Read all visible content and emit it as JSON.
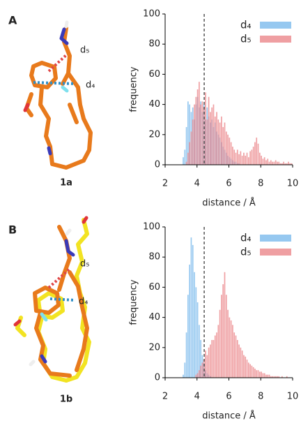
{
  "figure": {
    "panels": [
      {
        "letter": "A",
        "compound": "1a",
        "labels": [
          "d₅",
          "d₄"
        ]
      },
      {
        "letter": "B",
        "compound": "1b",
        "labels": [
          "d₅",
          "d₄"
        ]
      }
    ]
  },
  "chart_data": [
    {
      "type": "histogram",
      "xlabel": "distance / Å",
      "ylabel": "frequency",
      "bins": [
        3,
        3.1,
        3.2,
        3.3,
        3.4,
        3.5,
        3.6,
        3.7,
        3.8,
        3.9,
        4,
        4.1,
        4.2,
        4.3,
        4.4,
        4.5,
        4.6,
        4.7,
        4.8,
        4.9,
        5,
        5.1,
        5.2,
        5.3,
        5.4,
        5.5,
        5.6,
        5.7,
        5.8,
        5.9,
        6,
        6.1,
        6.2,
        6.3,
        6.4,
        6.5,
        6.6,
        6.7,
        6.8,
        6.9,
        7,
        7.1,
        7.2,
        7.3,
        7.4,
        7.5,
        7.6,
        7.7,
        7.8,
        7.9,
        8,
        8.1,
        8.2,
        8.3,
        8.4,
        8.5,
        8.6,
        8.7,
        8.8,
        8.9,
        9,
        9.1,
        9.2,
        9.3,
        9.4,
        9.5,
        9.6,
        9.7,
        9.8,
        9.9,
        10
      ],
      "series": [
        {
          "name": "d₄",
          "color": "#6ab0ea",
          "values": [
            0,
            5,
            10,
            25,
            42,
            40,
            35,
            38,
            30,
            40,
            45,
            38,
            42,
            35,
            40,
            30,
            38,
            32,
            28,
            30,
            25,
            28,
            22,
            20,
            18,
            15,
            12,
            10,
            8,
            6,
            5,
            4,
            3,
            2,
            2,
            1,
            1,
            0,
            0,
            0,
            0,
            0,
            0,
            0,
            0,
            0,
            0,
            0,
            0,
            0,
            0,
            0,
            0,
            0,
            0,
            0,
            0,
            0,
            0,
            0,
            0,
            0,
            0,
            0,
            0,
            0,
            0,
            0,
            0,
            0
          ]
        },
        {
          "name": "d₅",
          "color": "#e8767a",
          "values": [
            0,
            0,
            0,
            2,
            8,
            15,
            22,
            30,
            40,
            45,
            50,
            55,
            40,
            42,
            38,
            48,
            30,
            45,
            35,
            38,
            40,
            32,
            35,
            30,
            28,
            32,
            25,
            28,
            22,
            20,
            18,
            15,
            12,
            10,
            8,
            10,
            7,
            9,
            6,
            8,
            6,
            8,
            5,
            9,
            10,
            12,
            15,
            18,
            14,
            8,
            6,
            4,
            5,
            3,
            4,
            2,
            3,
            2,
            2,
            3,
            2,
            2,
            1,
            1,
            2,
            1,
            1,
            2,
            1,
            1
          ]
        }
      ],
      "xlim": [
        2,
        10
      ],
      "ylim": [
        0,
        100
      ],
      "xticks": [
        2,
        4,
        6,
        8,
        10
      ],
      "yticks": [
        0,
        20,
        40,
        60,
        80,
        100
      ],
      "vline": 4.45,
      "legend": "upper right"
    },
    {
      "type": "histogram",
      "xlabel": "distance / Å",
      "ylabel": "frequency",
      "bins": [
        3,
        3.1,
        3.2,
        3.3,
        3.4,
        3.5,
        3.6,
        3.7,
        3.8,
        3.9,
        4,
        4.1,
        4.2,
        4.3,
        4.4,
        4.5,
        4.6,
        4.7,
        4.8,
        4.9,
        5,
        5.1,
        5.2,
        5.3,
        5.4,
        5.5,
        5.6,
        5.7,
        5.8,
        5.9,
        6,
        6.1,
        6.2,
        6.3,
        6.4,
        6.5,
        6.6,
        6.7,
        6.8,
        6.9,
        7,
        7.1,
        7.2,
        7.3,
        7.4,
        7.5,
        7.6,
        7.7,
        7.8,
        7.9,
        8,
        8.1,
        8.2,
        8.3,
        8.4,
        8.5,
        8.6,
        8.7,
        8.8,
        8.9,
        9,
        9.1,
        9.2,
        9.3,
        9.4,
        9.5,
        9.6,
        9.7,
        9.8,
        9.9,
        10
      ],
      "series": [
        {
          "name": "d₄",
          "color": "#6ab0ea",
          "values": [
            0,
            2,
            10,
            30,
            55,
            75,
            93,
            88,
            70,
            60,
            50,
            35,
            25,
            15,
            10,
            5,
            3,
            2,
            1,
            0,
            0,
            0,
            0,
            0,
            0,
            0,
            0,
            0,
            0,
            0,
            0,
            0,
            0,
            0,
            0,
            0,
            0,
            0,
            0,
            0,
            0,
            0,
            0,
            0,
            0,
            0,
            0,
            0,
            0,
            0,
            0,
            0,
            0,
            0,
            0,
            0,
            0,
            0,
            0,
            0,
            0,
            0,
            0,
            0,
            0,
            0,
            0,
            0,
            0,
            0
          ]
        },
        {
          "name": "d₅",
          "color": "#e8767a",
          "values": [
            0,
            0,
            0,
            0,
            0,
            0,
            0,
            0,
            0,
            2,
            3,
            5,
            8,
            10,
            12,
            18,
            15,
            20,
            22,
            25,
            25,
            28,
            30,
            35,
            45,
            55,
            62,
            70,
            55,
            45,
            40,
            38,
            35,
            30,
            28,
            25,
            22,
            20,
            18,
            15,
            14,
            12,
            10,
            9,
            8,
            7,
            6,
            5,
            5,
            4,
            4,
            3,
            3,
            2,
            2,
            2,
            1,
            1,
            1,
            1,
            1,
            1,
            0,
            1,
            0,
            0,
            1,
            0,
            0,
            0
          ]
        }
      ],
      "xlim": [
        2,
        10
      ],
      "ylim": [
        0,
        100
      ],
      "xticks": [
        2,
        4,
        6,
        8,
        10
      ],
      "yticks": [
        0,
        20,
        40,
        60,
        80,
        100
      ],
      "vline": 4.45,
      "legend": "upper right"
    }
  ]
}
